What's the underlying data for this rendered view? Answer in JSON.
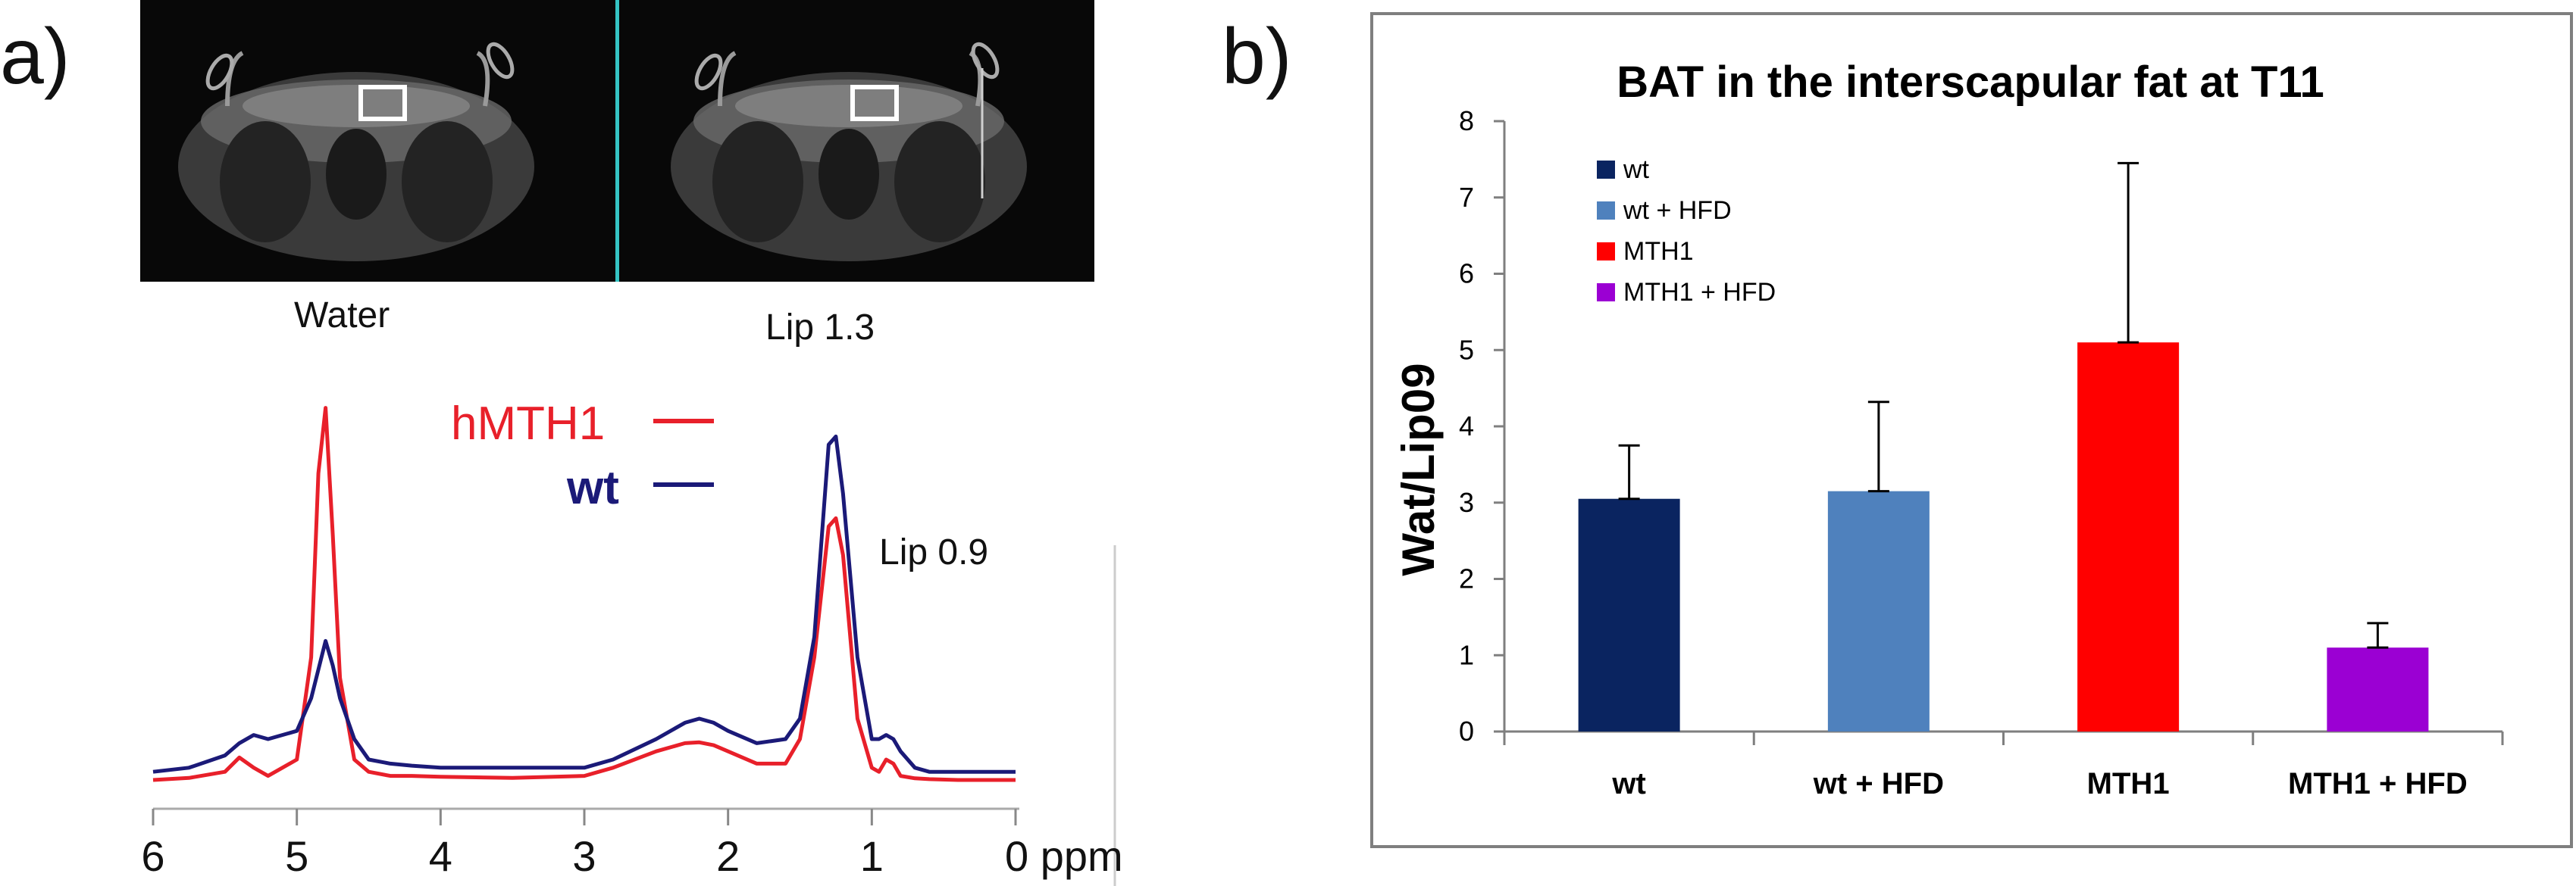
{
  "panel_a": {
    "label": "a)",
    "mri_images": [
      "left-axial-slice",
      "right-axial-slice"
    ],
    "peak_labels": {
      "water": "Water",
      "lip13": "Lip 1.3",
      "lip09": "Lip 0.9"
    },
    "legend": [
      {
        "name": "hMTH1",
        "color": "#e8202a"
      },
      {
        "name": "wt",
        "color": "#1b1a78"
      }
    ],
    "x_axis_ticks": [
      "6",
      "5",
      "4",
      "3",
      "2",
      "1",
      "0 ppm"
    ]
  },
  "panel_b": {
    "label": "b)"
  },
  "chart_data": [
    {
      "type": "line",
      "title": "",
      "xlabel": "ppm",
      "ylabel": "",
      "x_reversed": true,
      "xlim": [
        6,
        0
      ],
      "ylim": [
        0,
        1
      ],
      "x": [
        6.0,
        5.75,
        5.5,
        5.4,
        5.3,
        5.2,
        5.0,
        4.9,
        4.85,
        4.8,
        4.75,
        4.7,
        4.6,
        4.5,
        4.35,
        4.2,
        4.0,
        3.5,
        3.0,
        2.8,
        2.5,
        2.3,
        2.2,
        2.1,
        2.0,
        1.8,
        1.6,
        1.5,
        1.4,
        1.3,
        1.25,
        1.2,
        1.1,
        1.0,
        0.95,
        0.9,
        0.85,
        0.8,
        0.7,
        0.6,
        0.4,
        0.0
      ],
      "series": [
        {
          "name": "hMTH1",
          "color": "#e8202a",
          "values": [
            0.0,
            0.005,
            0.02,
            0.055,
            0.03,
            0.01,
            0.05,
            0.3,
            0.75,
            0.91,
            0.6,
            0.25,
            0.05,
            0.02,
            0.01,
            0.01,
            0.008,
            0.005,
            0.01,
            0.03,
            0.07,
            0.09,
            0.092,
            0.085,
            0.07,
            0.04,
            0.04,
            0.1,
            0.3,
            0.62,
            0.64,
            0.55,
            0.15,
            0.03,
            0.02,
            0.05,
            0.04,
            0.01,
            0.004,
            0.002,
            0.0,
            0.0
          ]
        },
        {
          "name": "wt",
          "color": "#1b1a78",
          "values": [
            0.02,
            0.03,
            0.06,
            0.09,
            0.11,
            0.1,
            0.12,
            0.2,
            0.27,
            0.34,
            0.28,
            0.2,
            0.1,
            0.05,
            0.04,
            0.035,
            0.03,
            0.03,
            0.03,
            0.05,
            0.1,
            0.14,
            0.15,
            0.14,
            0.12,
            0.09,
            0.1,
            0.15,
            0.35,
            0.82,
            0.84,
            0.7,
            0.3,
            0.1,
            0.1,
            0.11,
            0.1,
            0.07,
            0.03,
            0.02,
            0.02,
            0.02
          ]
        }
      ]
    },
    {
      "type": "bar",
      "title": "BAT in the interscapular fat at T11",
      "xlabel": "",
      "ylabel": "Wat/Lip09",
      "ylim": [
        0,
        8
      ],
      "yticks": [
        "0",
        "1",
        "2",
        "3",
        "4",
        "5",
        "6",
        "7",
        "8"
      ],
      "categories": [
        "wt",
        "wt + HFD",
        "MTH1",
        "MTH1 + HFD"
      ],
      "values": [
        3.05,
        3.15,
        5.1,
        1.1
      ],
      "errors": [
        0.7,
        1.17,
        2.35,
        0.32
      ],
      "colors": [
        "#0a2460",
        "#4f81bd",
        "#ff0000",
        "#9b00d3"
      ],
      "legend": [
        {
          "name": "wt",
          "color": "#0a2460"
        },
        {
          "name": "wt + HFD",
          "color": "#4f81bd"
        },
        {
          "name": "MTH1",
          "color": "#ff0000"
        },
        {
          "name": "MTH1 + HFD",
          "color": "#9b00d3"
        }
      ]
    }
  ]
}
